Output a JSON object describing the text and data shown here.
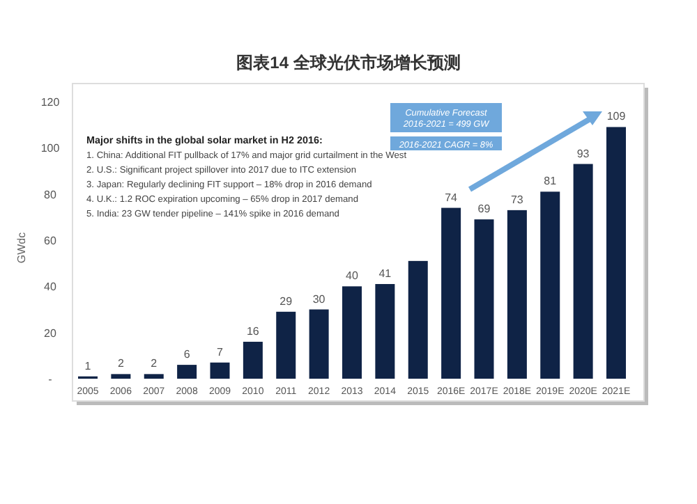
{
  "chart_data": {
    "type": "bar",
    "title": "图表14  全球光伏市场增长预测",
    "ylabel": "GWdc",
    "categories": [
      "2005",
      "2006",
      "2007",
      "2008",
      "2009",
      "2010",
      "2011",
      "2012",
      "2013",
      "2014",
      "2015",
      "2016E",
      "2017E",
      "2018E",
      "2019E",
      "2020E",
      "2021E"
    ],
    "values": [
      1,
      2,
      2,
      6,
      7,
      16,
      29,
      30,
      40,
      41,
      51,
      74,
      69,
      73,
      81,
      93,
      109
    ],
    "value_labels": [
      "1",
      "2",
      "2",
      "6",
      "7",
      "16",
      "29",
      "30",
      "40",
      "41",
      null,
      "74",
      "69",
      "73",
      "81",
      "93",
      "109"
    ],
    "color": "#0f2346",
    "ylim": [
      0,
      120
    ],
    "yticks": [
      {
        "value": 0,
        "label": "-"
      },
      20,
      40,
      60,
      80,
      100,
      120
    ],
    "grid": false,
    "annotations": [
      "Major shifts in the global solar market in H2 2016:",
      "1. China: Additional FIT pullback of 17% and major grid curtailment in the West",
      "2. U.S.: Significant project spillover into 2017 due to ITC extension",
      "3. Japan: Regularly declining FIT support – 18% drop in 2016 demand",
      "4. U.K.: 1.2 ROC expiration upcoming – 65% drop in 2017 demand",
      "5. India: 23 GW tender pipeline – 141% spike in 2016 demand",
      "Cumulative Forecast 2016-2021 = 499 GW",
      "2016-2021 CAGR = 8%"
    ]
  }
}
